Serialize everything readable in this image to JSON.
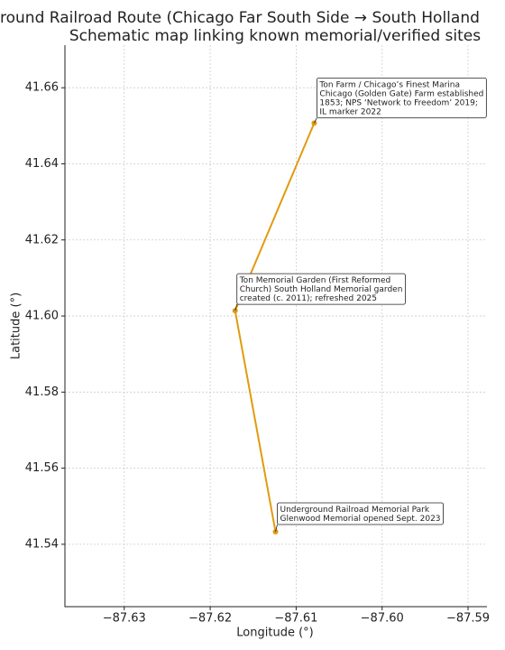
{
  "chart_data": {
    "type": "line",
    "title": "round Railroad Route (Chicago Far South Side → South Holland",
    "subtitle": "Schematic map linking known memorial/verified sites",
    "x_label": "Longitude (°)",
    "y_label": "Latitude (°)",
    "x": [
      -87.6079,
      -87.6171,
      -87.6124
    ],
    "series": [
      {
        "color": "#e09b0f",
        "values": [
          41.6507,
          41.6014,
          41.5433
        ]
      }
    ],
    "annotations": [
      [
        "Ton Farm / Chicago’s Finest Marina",
        "Chicago (Golden Gate) Farm established",
        "1853; NPS ‘Network to Freedom’ 2019;",
        "IL marker 2022"
      ],
      [
        "Ton Memorial Garden (First Reformed",
        "Church) South Holland Memorial garden",
        "created (c. 2011); refreshed 2025"
      ],
      [
        "Underground Railroad Memorial Park",
        "Glenwood Memorial opened Sept. 2023"
      ]
    ],
    "xlim": [
      -87.6369,
      -87.5878
    ],
    "ylim": [
      41.5236,
      41.6712
    ],
    "xticks": [
      {
        "value": -87.63,
        "label": "−87.63"
      },
      {
        "value": -87.62,
        "label": "−87.62"
      },
      {
        "value": -87.61,
        "label": "−87.61"
      },
      {
        "value": -87.6,
        "label": "−87.60"
      },
      {
        "value": -87.59,
        "label": "−87.59"
      }
    ],
    "yticks": [
      41.54,
      41.56,
      41.58,
      {
        "value": 41.6,
        "label": "41.60"
      },
      41.62,
      41.64,
      41.66
    ],
    "grid": true
  }
}
